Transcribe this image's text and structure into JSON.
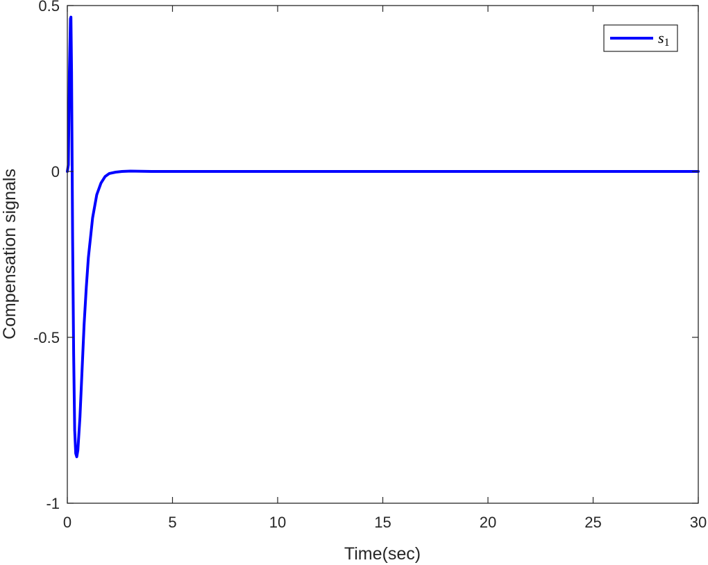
{
  "chart_data": {
    "type": "line",
    "title": "",
    "xlabel": "Time(sec)",
    "ylabel": "Compensation signals",
    "xlim": [
      0,
      30
    ],
    "ylim": [
      -1,
      0.5
    ],
    "xticks": [
      0,
      5,
      10,
      15,
      20,
      25,
      30
    ],
    "xtick_labels": [
      "0",
      "5",
      "10",
      "15",
      "20",
      "25",
      "30"
    ],
    "yticks": [
      -1,
      -0.5,
      0,
      0.5
    ],
    "ytick_labels": [
      "-1",
      "-0.5",
      "0",
      "0.5"
    ],
    "grid": false,
    "legend_position": "upper right",
    "series": [
      {
        "name": "s1",
        "legend_label": "s",
        "legend_subscript": "1",
        "color": "#0000ff",
        "x": [
          0,
          0.05,
          0.1,
          0.15,
          0.17,
          0.2,
          0.25,
          0.3,
          0.35,
          0.4,
          0.45,
          0.5,
          0.6,
          0.7,
          0.8,
          0.9,
          1.0,
          1.2,
          1.4,
          1.6,
          1.8,
          2.0,
          2.3,
          2.6,
          3.0,
          4.0,
          5.0,
          10.0,
          15.0,
          20.0,
          25.0,
          30.0
        ],
        "values": [
          0.0,
          0.02,
          0.3,
          0.46,
          0.465,
          0.3,
          -0.2,
          -0.55,
          -0.78,
          -0.85,
          -0.86,
          -0.84,
          -0.74,
          -0.6,
          -0.46,
          -0.35,
          -0.26,
          -0.14,
          -0.07,
          -0.035,
          -0.015,
          -0.006,
          -0.002,
          0.0,
          0.001,
          0.0,
          0.0,
          0.0,
          0.0,
          0.0,
          0.0,
          0.0
        ]
      }
    ]
  },
  "legend": {
    "label": "s",
    "subscript": "1"
  }
}
